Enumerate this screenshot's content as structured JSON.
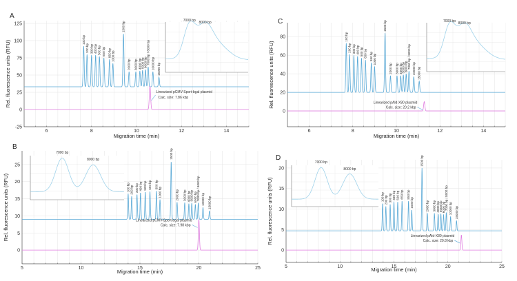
{
  "colors": {
    "ladder": "#5aa9d6",
    "sample": "#e07de0",
    "inset": "#9fd2ea",
    "grid": "#e4e4e4"
  },
  "chart_data": [
    {
      "panel": "A",
      "type": "line",
      "xlabel": "Migration time (min)",
      "ylabel": "Rel. fluorescence units (RFU)",
      "xlim": [
        5,
        15
      ],
      "ylim": [
        -25,
        129
      ],
      "xticks": [
        6,
        8,
        10,
        12,
        14
      ],
      "yticks": [
        -25,
        0,
        25,
        50,
        75,
        100,
        125
      ],
      "grid": true,
      "ladder_baseline": 33,
      "ladder_peaks": [
        {
          "label": "100 bp",
          "time": 7.65,
          "rfu": 92
        },
        {
          "label": "200 bp",
          "time": 7.8,
          "rfu": 80
        },
        {
          "label": "300 bp",
          "time": 8.0,
          "rfu": 79
        },
        {
          "label": "400 bp",
          "time": 8.18,
          "rfu": 79
        },
        {
          "label": "500 bp",
          "time": 8.35,
          "rfu": 77
        },
        {
          "label": "650 bp",
          "time": 8.55,
          "rfu": 75
        },
        {
          "label": "850 bp",
          "time": 8.8,
          "rfu": 73
        },
        {
          "label": "1000 bp",
          "time": 8.95,
          "rfu": 67
        },
        {
          "label": "1500 bp",
          "time": 9.42,
          "rfu": 110
        },
        {
          "label": "2000 bp",
          "time": 9.67,
          "rfu": 55
        },
        {
          "label": "3000 bp",
          "time": 9.97,
          "rfu": 55
        },
        {
          "label": "4000 bp",
          "time": 10.15,
          "rfu": 56
        },
        {
          "label": "5000 bp",
          "time": 10.27,
          "rfu": 57
        },
        {
          "label": "6000 bp",
          "time": 10.4,
          "rfu": 58
        },
        {
          "label": "7000 bp / 8000 bp",
          "time": 10.52,
          "rfu": 62
        },
        {
          "label": "10000 bp",
          "time": 10.73,
          "rfu": 55
        },
        {
          "label": "15000 bp",
          "time": 11.0,
          "rfu": 47
        }
      ],
      "sample_baseline": 0,
      "sample_peak": {
        "time": 10.6,
        "rfu": 34
      },
      "annotation": {
        "line1": "Linearized pCMV-Sport-bgal plasmid",
        "line2": "Calc. size: 7.86 kbp"
      },
      "inset": {
        "peak_labels": [
          "7000 bp",
          "8000 bp"
        ]
      }
    },
    {
      "panel": "B",
      "type": "line",
      "xlabel": "Migration time (min)",
      "ylabel": "Rel. fluorescence units (RFU)",
      "xlim": [
        5,
        25
      ],
      "ylim": [
        -4,
        29
      ],
      "xticks": [
        5,
        10,
        15,
        20,
        25
      ],
      "yticks": [
        0,
        5,
        10,
        15,
        20,
        25
      ],
      "grid": true,
      "ladder_baseline": 9,
      "ladder_peaks": [
        {
          "label": "100 bp",
          "time": 14.0,
          "rfu": 16.5
        },
        {
          "label": "200 bp",
          "time": 14.3,
          "rfu": 15.8
        },
        {
          "label": "300 bp",
          "time": 14.75,
          "rfu": 16.3
        },
        {
          "label": "400 bp",
          "time": 15.05,
          "rfu": 16.8
        },
        {
          "label": "500 bp",
          "time": 15.45,
          "rfu": 17
        },
        {
          "label": "650 bp",
          "time": 15.85,
          "rfu": 17.2
        },
        {
          "label": "850 bp",
          "time": 16.4,
          "rfu": 17.3
        },
        {
          "label": "1000 bp",
          "time": 16.7,
          "rfu": 14.8
        },
        {
          "label": "1500 bp",
          "time": 17.65,
          "rfu": 26
        },
        {
          "label": "2000 bp",
          "time": 18.15,
          "rfu": 14
        },
        {
          "label": "3000 bp",
          "time": 18.8,
          "rfu": 13.9
        },
        {
          "label": "4000 bp",
          "time": 19.15,
          "rfu": 13.6
        },
        {
          "label": "5000 bp",
          "time": 19.4,
          "rfu": 13.8
        },
        {
          "label": "6000 bp",
          "time": 19.7,
          "rfu": 13.4
        },
        {
          "label": "7000 bp / 8000 bp",
          "time": 19.95,
          "rfu": 13.8
        },
        {
          "label": "10000 bp",
          "time": 20.35,
          "rfu": 12.5
        },
        {
          "label": "15000 bp",
          "time": 20.9,
          "rfu": 11.5
        }
      ],
      "sample_baseline": 0,
      "sample_peak": {
        "time": 20.0,
        "rfu": 9
      },
      "annotation": {
        "line1": "Linearized pCMV-Sport-bgal plasmid",
        "line2": "Calc. size: 7.98 kbp"
      },
      "inset": {
        "peak_labels": [
          "7000 bp",
          "8000 bp"
        ]
      }
    },
    {
      "panel": "C",
      "type": "line",
      "xlabel": "Migration time (min)",
      "ylabel": "Rel. fluorescence units (RFU)",
      "xlim": [
        5,
        15
      ],
      "ylim": [
        -17,
        95
      ],
      "xticks": [
        6,
        8,
        10,
        12,
        14
      ],
      "yticks": [
        0,
        20,
        40,
        60,
        80
      ],
      "grid": true,
      "ladder_baseline": 20,
      "ladder_peaks": [
        {
          "label": "100 bp",
          "time": 7.7,
          "rfu": 73
        },
        {
          "label": "200 bp",
          "time": 7.85,
          "rfu": 61
        },
        {
          "label": "300 bp",
          "time": 8.05,
          "rfu": 60
        },
        {
          "label": "400 bp",
          "time": 8.22,
          "rfu": 59
        },
        {
          "label": "500 bp",
          "time": 8.4,
          "rfu": 57
        },
        {
          "label": "650 bp",
          "time": 8.58,
          "rfu": 55
        },
        {
          "label": "850 bp",
          "time": 8.85,
          "rfu": 52
        },
        {
          "label": "1000 bp",
          "time": 9.0,
          "rfu": 48
        },
        {
          "label": "1500 bp",
          "time": 9.48,
          "rfu": 84
        },
        {
          "label": "2000 bp",
          "time": 9.73,
          "rfu": 38
        },
        {
          "label": "3000 bp",
          "time": 10.03,
          "rfu": 38
        },
        {
          "label": "4000 bp",
          "time": 10.2,
          "rfu": 38
        },
        {
          "label": "5000 bp",
          "time": 10.32,
          "rfu": 39
        },
        {
          "label": "6000 bp",
          "time": 10.45,
          "rfu": 40
        },
        {
          "label": "7000 bp / 8000 bp",
          "time": 10.58,
          "rfu": 43
        },
        {
          "label": "10000 bp",
          "time": 10.8,
          "rfu": 37
        },
        {
          "label": "15000 bp",
          "time": 11.05,
          "rfu": 32
        }
      ],
      "sample_baseline": 0,
      "sample_peak": {
        "time": 11.28,
        "rfu": 10
      },
      "annotation": {
        "line1": "Linearized pAld-X80 plasmid",
        "line2": "Calc. size: 20.2 kbp"
      },
      "inset": {
        "peak_labels": [
          "7000 bp",
          "8000 bp"
        ]
      }
    },
    {
      "panel": "D",
      "type": "line",
      "xlabel": "Migration time (min)",
      "ylabel": "Rel. fluorescence units (RFU)",
      "xlim": [
        5,
        25
      ],
      "ylim": [
        -3,
        22
      ],
      "xticks": [
        5,
        10,
        15,
        20,
        25
      ],
      "yticks": [
        0,
        5,
        10,
        15,
        20
      ],
      "grid": true,
      "ladder_baseline": 4.7,
      "ladder_peaks": [
        {
          "label": "100 bp",
          "time": 13.95,
          "rfu": 11.4
        },
        {
          "label": "200 bp",
          "time": 14.25,
          "rfu": 10.7
        },
        {
          "label": "300 bp",
          "time": 14.65,
          "rfu": 11.2
        },
        {
          "label": "400 bp",
          "time": 15.0,
          "rfu": 11.8
        },
        {
          "label": "500 bp",
          "time": 15.35,
          "rfu": 11.8
        },
        {
          "label": "650 bp",
          "time": 15.75,
          "rfu": 12
        },
        {
          "label": "850 bp",
          "time": 16.35,
          "rfu": 12
        },
        {
          "label": "1000 bp",
          "time": 16.65,
          "rfu": 9.8
        },
        {
          "label": "1500 bp",
          "time": 17.6,
          "rfu": 20
        },
        {
          "label": "2000 bp",
          "time": 18.1,
          "rfu": 9
        },
        {
          "label": "3000 bp",
          "time": 18.75,
          "rfu": 9
        },
        {
          "label": "4000 bp",
          "time": 19.1,
          "rfu": 8.8
        },
        {
          "label": "5000 bp",
          "time": 19.35,
          "rfu": 8.9
        },
        {
          "label": "6000 bp",
          "time": 19.6,
          "rfu": 8.7
        },
        {
          "label": "7000 bp / 8000 bp",
          "time": 19.85,
          "rfu": 9.2
        },
        {
          "label": "10000 bp",
          "time": 20.25,
          "rfu": 8.2
        },
        {
          "label": "15000 bp",
          "time": 20.8,
          "rfu": 7.2
        }
      ],
      "sample_baseline": 0,
      "sample_peak": {
        "time": 21.25,
        "rfu": 3.7
      },
      "annotation": {
        "line1": "Linearized pAld-X80 plasmid",
        "line2": "Calc. size: 20.8 kbp"
      },
      "inset": {
        "peak_labels": [
          "7000 bp",
          "8000 bp"
        ]
      }
    }
  ]
}
